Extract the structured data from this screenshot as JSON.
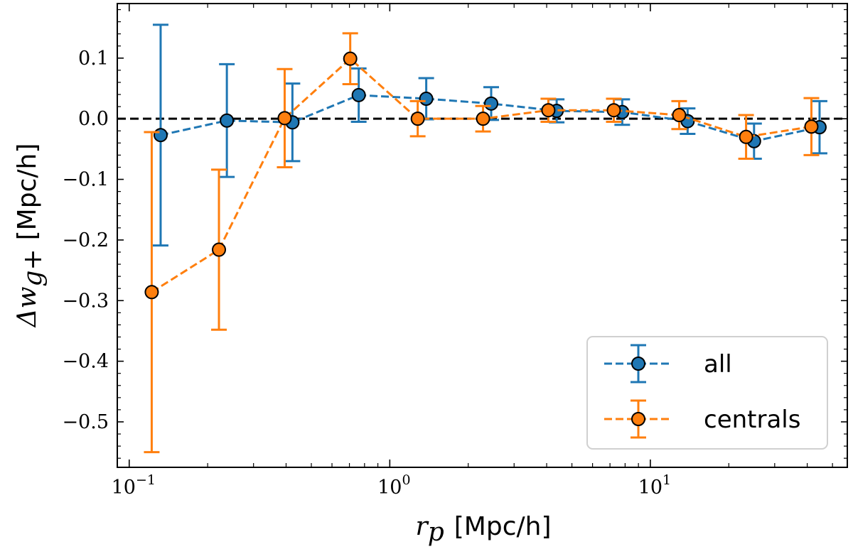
{
  "chart_data": {
    "type": "line",
    "title": "",
    "xlabel": {
      "math": "r",
      "sub": "p",
      "unit": "[Mpc/h]"
    },
    "ylabel": {
      "math": "Δw",
      "sub": "g+",
      "unit": "[Mpc/h]"
    },
    "xscale": "log",
    "xlim": [
      0.09,
      57
    ],
    "ylim": [
      -0.575,
      0.19
    ],
    "x_ticks": [
      {
        "value": 0.1,
        "base": "10",
        "exp": "−1"
      },
      {
        "value": 1,
        "base": "10",
        "exp": "0"
      },
      {
        "value": 10,
        "base": "10",
        "exp": "1"
      }
    ],
    "y_ticks": [
      {
        "value": 0.1,
        "label": "0.1"
      },
      {
        "value": 0.0,
        "label": "0.0"
      },
      {
        "value": -0.1,
        "label": "−0.1"
      },
      {
        "value": -0.2,
        "label": "−0.2"
      },
      {
        "value": -0.3,
        "label": "−0.3"
      },
      {
        "value": -0.4,
        "label": "−0.4"
      },
      {
        "value": -0.5,
        "label": "−0.5"
      }
    ],
    "reference_line": {
      "y": 0.0,
      "color": "#000000",
      "style": "dashed"
    },
    "legend_position": "lower-right",
    "series": [
      {
        "name": "all",
        "color": "#1f77b4",
        "x": [
          0.132,
          0.237,
          0.423,
          0.76,
          1.38,
          2.45,
          4.37,
          7.8,
          13.9,
          25.0,
          44.6
        ],
        "y": [
          -0.027,
          -0.003,
          -0.006,
          0.039,
          0.033,
          0.025,
          0.013,
          0.011,
          -0.004,
          -0.037,
          -0.014
        ],
        "yerr": [
          0.182,
          0.093,
          0.064,
          0.044,
          0.034,
          0.027,
          0.019,
          0.021,
          0.021,
          0.029,
          0.043
        ]
      },
      {
        "name": "centrals",
        "color": "#ff7f0e",
        "x": [
          0.122,
          0.221,
          0.395,
          0.705,
          1.28,
          2.28,
          4.06,
          7.24,
          12.9,
          23.3,
          41.5
        ],
        "y": [
          -0.286,
          -0.216,
          0.001,
          0.099,
          0.0,
          0.0,
          0.014,
          0.014,
          0.006,
          -0.03,
          -0.013
        ],
        "yerr": [
          0.264,
          0.132,
          0.081,
          0.042,
          0.029,
          0.021,
          0.019,
          0.019,
          0.023,
          0.036,
          0.047
        ]
      }
    ]
  }
}
